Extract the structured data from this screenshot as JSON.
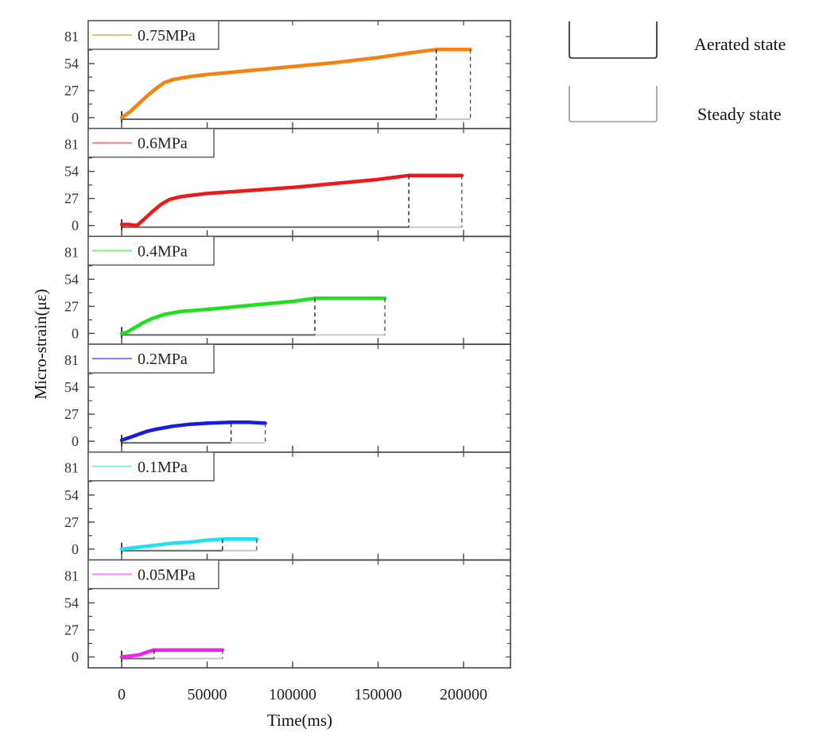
{
  "chart_data": {
    "type": "line",
    "layout": "stacked-panels",
    "xlabel": "Time(ms)",
    "ylabel": "Micro-strain(με)",
    "xlim": [
      -22000,
      228000
    ],
    "xticks": [
      0,
      50000,
      100000,
      150000,
      200000
    ],
    "xtick_labels": [
      "0",
      "50000",
      "100000",
      "150000",
      "200000"
    ],
    "ylim": [
      -10,
      100
    ],
    "yticks": [
      0,
      27,
      54,
      81
    ],
    "ytick_labels": [
      "0",
      "27",
      "54",
      "81"
    ],
    "grid": false,
    "legend_position": "upper left of each panel",
    "state_key": {
      "aerated": {
        "label": "Aerated state",
        "color": "#333333"
      },
      "steady": {
        "label": "Steady state",
        "color": "#999999"
      }
    },
    "series": [
      {
        "name": "0.75MPa",
        "color": "#f5820f",
        "aerated_end": 184000,
        "steady_end": 204000,
        "x": [
          0,
          5000,
          10000,
          15000,
          20000,
          25000,
          30000,
          40000,
          50000,
          75000,
          100000,
          125000,
          150000,
          170000,
          184000,
          194000,
          204000
        ],
        "y": [
          0,
          6,
          14,
          22,
          29,
          35,
          38,
          41,
          43,
          47,
          51,
          55,
          60,
          65,
          68,
          68,
          68
        ]
      },
      {
        "name": "0.6MPa",
        "color": "#ef1818",
        "aerated_end": 168000,
        "steady_end": 199000,
        "x": [
          0,
          4000,
          9000,
          13000,
          18000,
          23000,
          28000,
          35000,
          50000,
          75000,
          100000,
          125000,
          150000,
          168000,
          185000,
          199000
        ],
        "y": [
          1,
          1,
          0,
          6,
          14,
          21,
          26,
          29,
          32,
          35,
          38,
          42,
          46,
          50,
          50,
          50
        ]
      },
      {
        "name": "0.4MPa",
        "color": "#1ee01e",
        "aerated_end": 113000,
        "steady_end": 154000,
        "x": [
          0,
          3000,
          8000,
          13000,
          18000,
          25000,
          35000,
          50000,
          75000,
          100000,
          113000,
          130000,
          154000
        ],
        "y": [
          0,
          1,
          6,
          11,
          15,
          19,
          22,
          24,
          28,
          32,
          35,
          35,
          35
        ]
      },
      {
        "name": "0.2MPa",
        "color": "#1a1ae0",
        "aerated_end": 64000,
        "steady_end": 84000,
        "x": [
          0,
          5000,
          10000,
          15000,
          20000,
          30000,
          40000,
          50000,
          64000,
          74000,
          84000
        ],
        "y": [
          1,
          4,
          7,
          10,
          12,
          15,
          17,
          18,
          19,
          19,
          18
        ]
      },
      {
        "name": "0.1MPa",
        "color": "#22e0f0",
        "aerated_end": 59000,
        "steady_end": 79000,
        "x": [
          0,
          5000,
          10000,
          20000,
          30000,
          40000,
          50000,
          59000,
          70000,
          79000
        ],
        "y": [
          0,
          1,
          2,
          4,
          6,
          7,
          9,
          10,
          10,
          10
        ]
      },
      {
        "name": "0.05MPa",
        "color": "#ee22ee",
        "aerated_end": 19000,
        "steady_end": 59000,
        "x": [
          0,
          5000,
          10000,
          15000,
          19000,
          30000,
          45000,
          59000
        ],
        "y": [
          0,
          1,
          2,
          5,
          7,
          7,
          7,
          7
        ]
      }
    ]
  }
}
